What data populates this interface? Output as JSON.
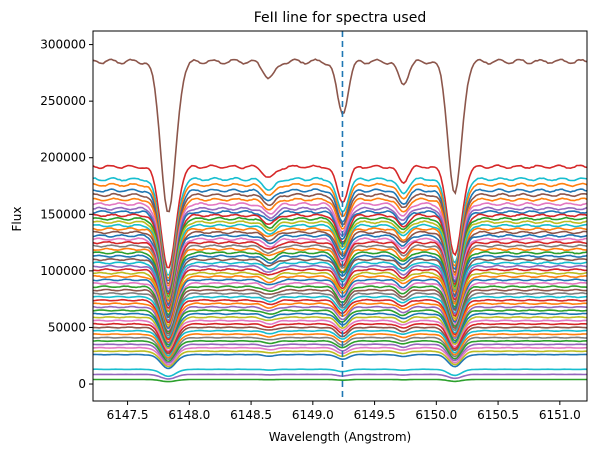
{
  "chart_data": {
    "type": "line",
    "title": "FeII line for spectra used",
    "xlabel": "Wavelength (Angstrom)",
    "ylabel": "Flux",
    "xlim": [
      6147.22,
      6151.22
    ],
    "ylim": [
      -15000,
      312000
    ],
    "xticks": [
      6147.5,
      6148.0,
      6148.5,
      6149.0,
      6149.5,
      6150.0,
      6150.5,
      6151.0
    ],
    "xtick_labels": [
      "6147.5",
      "6148.0",
      "6148.5",
      "6149.0",
      "6149.5",
      "6150.0",
      "6150.5",
      "6151.0"
    ],
    "yticks": [
      0,
      50000,
      100000,
      150000,
      200000,
      250000,
      300000
    ],
    "ytick_labels": [
      "0",
      "50000",
      "100000",
      "150000",
      "200000",
      "250000",
      "300000"
    ],
    "reference_line": {
      "x": 6149.24,
      "style": "dashed",
      "color": "#1f77b4"
    },
    "grid": false,
    "absorption_lines": [
      {
        "center": 6147.83,
        "depth_fraction": 0.47,
        "width": 0.06
      },
      {
        "center": 6148.65,
        "depth_fraction": 0.05,
        "width": 0.05
      },
      {
        "center": 6149.24,
        "depth_fraction": 0.16,
        "width": 0.045
      },
      {
        "center": 6149.73,
        "depth_fraction": 0.07,
        "width": 0.04
      },
      {
        "center": 6150.15,
        "depth_fraction": 0.41,
        "width": 0.055
      }
    ],
    "series": [
      {
        "continuum": 285000,
        "color": "#8c564b"
      },
      {
        "continuum": 192000,
        "color": "#d62728"
      },
      {
        "continuum": 181000,
        "color": "#17becf"
      },
      {
        "continuum": 176000,
        "color": "#ff7f0e"
      },
      {
        "continuum": 171000,
        "color": "#1f77b4"
      },
      {
        "continuum": 167000,
        "color": "#8c564b"
      },
      {
        "continuum": 163000,
        "color": "#ff7f0e"
      },
      {
        "continuum": 159000,
        "color": "#e377c2"
      },
      {
        "continuum": 155000,
        "color": "#9467bd"
      },
      {
        "continuum": 152000,
        "color": "#1f77b4"
      },
      {
        "continuum": 149000,
        "color": "#d62728"
      },
      {
        "continuum": 146000,
        "color": "#2ca02c"
      },
      {
        "continuum": 143000,
        "color": "#bcbd22"
      },
      {
        "continuum": 140000,
        "color": "#17becf"
      },
      {
        "continuum": 137000,
        "color": "#ff7f0e"
      },
      {
        "continuum": 134000,
        "color": "#8c564b"
      },
      {
        "continuum": 131000,
        "color": "#1f77b4"
      },
      {
        "continuum": 128000,
        "color": "#e377c2"
      },
      {
        "continuum": 125000,
        "color": "#d62728"
      },
      {
        "continuum": 122000,
        "color": "#7f7f7f"
      },
      {
        "continuum": 119000,
        "color": "#ff7f0e"
      },
      {
        "continuum": 116000,
        "color": "#2ca02c"
      },
      {
        "continuum": 113000,
        "color": "#1f77b4"
      },
      {
        "continuum": 110000,
        "color": "#8c564b"
      },
      {
        "continuum": 107000,
        "color": "#17becf"
      },
      {
        "continuum": 104000,
        "color": "#9467bd"
      },
      {
        "continuum": 101000,
        "color": "#d62728"
      },
      {
        "continuum": 98000,
        "color": "#bcbd22"
      },
      {
        "continuum": 95000,
        "color": "#ff7f0e"
      },
      {
        "continuum": 92000,
        "color": "#1f77b4"
      },
      {
        "continuum": 89000,
        "color": "#e377c2"
      },
      {
        "continuum": 86000,
        "color": "#2ca02c"
      },
      {
        "continuum": 83000,
        "color": "#8c564b"
      },
      {
        "continuum": 80000,
        "color": "#7f7f7f"
      },
      {
        "continuum": 77000,
        "color": "#17becf"
      },
      {
        "continuum": 74000,
        "color": "#d62728"
      },
      {
        "continuum": 71000,
        "color": "#ff7f0e"
      },
      {
        "continuum": 68000,
        "color": "#9467bd"
      },
      {
        "continuum": 65000,
        "color": "#2ca02c"
      },
      {
        "continuum": 62000,
        "color": "#1f77b4"
      },
      {
        "continuum": 59000,
        "color": "#bcbd22"
      },
      {
        "continuum": 56000,
        "color": "#e377c2"
      },
      {
        "continuum": 53000,
        "color": "#d62728"
      },
      {
        "continuum": 50000,
        "color": "#8c564b"
      },
      {
        "continuum": 47000,
        "color": "#17becf"
      },
      {
        "continuum": 44000,
        "color": "#ff7f0e"
      },
      {
        "continuum": 41000,
        "color": "#7f7f7f"
      },
      {
        "continuum": 38000,
        "color": "#2ca02c"
      },
      {
        "continuum": 35000,
        "color": "#9467bd"
      },
      {
        "continuum": 32000,
        "color": "#e377c2"
      },
      {
        "continuum": 29000,
        "color": "#bcbd22"
      },
      {
        "continuum": 26000,
        "color": "#1f77b4"
      },
      {
        "continuum": 13000,
        "color": "#17becf"
      },
      {
        "continuum": 8500,
        "color": "#9467bd"
      },
      {
        "continuum": 4000,
        "color": "#2ca02c"
      }
    ]
  }
}
